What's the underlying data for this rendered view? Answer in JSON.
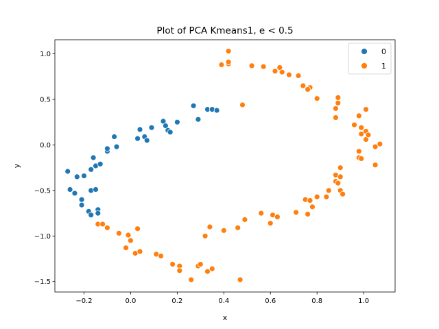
{
  "chart_data": {
    "type": "scatter",
    "title": "Plot of PCA Kmeans1, e < 0.5",
    "xlabel": "x",
    "ylabel": "y",
    "xlim": [
      -0.325,
      1.135
    ],
    "ylim": [
      -1.615,
      1.155
    ],
    "xticks": [
      -0.2,
      0.0,
      0.2,
      0.4,
      0.6,
      0.8,
      1.0
    ],
    "yticks": [
      -1.5,
      -1.0,
      -0.5,
      0.0,
      0.5,
      1.0
    ],
    "xtick_labels": [
      "−0.2",
      "0.0",
      "0.2",
      "0.4",
      "0.6",
      "0.8",
      "1.0"
    ],
    "ytick_labels": [
      "−1.5",
      "−1.0",
      "−0.5",
      "0.0",
      "0.5",
      "1.0"
    ],
    "grid": false,
    "legend": {
      "position": "top-right"
    },
    "series": [
      {
        "name": "0",
        "color": "#1f77b4",
        "points": [
          [
            -0.27,
            -0.29
          ],
          [
            -0.26,
            -0.49
          ],
          [
            -0.24,
            -0.53
          ],
          [
            -0.23,
            -0.35
          ],
          [
            -0.21,
            -0.6
          ],
          [
            -0.21,
            -0.66
          ],
          [
            -0.2,
            -0.34
          ],
          [
            -0.18,
            -0.73
          ],
          [
            -0.17,
            -0.5
          ],
          [
            -0.17,
            -0.77
          ],
          [
            -0.17,
            -0.27
          ],
          [
            -0.16,
            -0.14
          ],
          [
            -0.15,
            -0.49
          ],
          [
            -0.15,
            -0.23
          ],
          [
            -0.14,
            -0.71
          ],
          [
            -0.14,
            -0.75
          ],
          [
            -0.13,
            -0.21
          ],
          [
            -0.1,
            -0.07
          ],
          [
            -0.1,
            -0.04
          ],
          [
            -0.07,
            0.09
          ],
          [
            -0.06,
            -0.02
          ],
          [
            0.03,
            0.07
          ],
          [
            0.04,
            0.17
          ],
          [
            0.06,
            0.09
          ],
          [
            0.07,
            0.05
          ],
          [
            0.09,
            0.19
          ],
          [
            0.14,
            0.26
          ],
          [
            0.15,
            0.21
          ],
          [
            0.16,
            0.16
          ],
          [
            0.17,
            0.14
          ],
          [
            0.2,
            0.25
          ],
          [
            0.27,
            0.43
          ],
          [
            0.29,
            0.28
          ],
          [
            0.33,
            0.39
          ],
          [
            0.35,
            0.39
          ],
          [
            0.37,
            0.38
          ]
        ]
      },
      {
        "name": "1",
        "color": "#ff7f0e",
        "points": [
          [
            -0.14,
            -0.87
          ],
          [
            -0.12,
            -0.87
          ],
          [
            -0.1,
            -0.91
          ],
          [
            -0.05,
            -0.97
          ],
          [
            -0.02,
            -1.13
          ],
          [
            -0.01,
            -0.99
          ],
          [
            -0.0,
            -1.05
          ],
          [
            0.02,
            -1.19
          ],
          [
            0.04,
            -1.17
          ],
          [
            0.03,
            -0.92
          ],
          [
            0.11,
            -1.2
          ],
          [
            0.13,
            -1.22
          ],
          [
            0.18,
            -1.31
          ],
          [
            0.21,
            -1.33
          ],
          [
            0.21,
            -1.38
          ],
          [
            0.26,
            -1.48
          ],
          [
            0.29,
            -1.33
          ],
          [
            0.3,
            -1.31
          ],
          [
            0.32,
            -1.0
          ],
          [
            0.33,
            -1.39
          ],
          [
            0.34,
            -0.9
          ],
          [
            0.35,
            -1.36
          ],
          [
            0.4,
            -0.94
          ],
          [
            0.46,
            -0.91
          ],
          [
            0.47,
            -1.48
          ],
          [
            0.49,
            -0.82
          ],
          [
            0.56,
            -0.75
          ],
          [
            0.6,
            -0.86
          ],
          [
            0.61,
            -0.77
          ],
          [
            0.63,
            -0.79
          ],
          [
            0.71,
            -0.74
          ],
          [
            0.75,
            -0.6
          ],
          [
            0.76,
            -0.76
          ],
          [
            0.77,
            -0.61
          ],
          [
            0.78,
            -0.68
          ],
          [
            0.8,
            -0.57
          ],
          [
            0.84,
            -0.57
          ],
          [
            0.85,
            -0.5
          ],
          [
            0.88,
            -0.4
          ],
          [
            0.88,
            -0.33
          ],
          [
            0.89,
            -0.42
          ],
          [
            0.9,
            -0.35
          ],
          [
            0.9,
            -0.25
          ],
          [
            0.9,
            -0.5
          ],
          [
            0.91,
            -0.54
          ],
          [
            0.96,
            0.22
          ],
          [
            0.98,
            -0.14
          ],
          [
            0.98,
            -0.07
          ],
          [
            0.99,
            -0.15
          ],
          [
            0.99,
            0.19
          ],
          [
            0.99,
            0.12
          ],
          [
            1.01,
            0.15
          ],
          [
            1.01,
            0.06
          ],
          [
            1.02,
            0.11
          ],
          [
            1.05,
            -0.02
          ],
          [
            1.05,
            -0.22
          ],
          [
            1.07,
            0.01
          ],
          [
            0.98,
            0.32
          ],
          [
            1.01,
            0.39
          ],
          [
            0.88,
            0.3
          ],
          [
            0.88,
            0.4
          ],
          [
            0.89,
            0.46
          ],
          [
            0.89,
            0.52
          ],
          [
            0.8,
            0.51
          ],
          [
            0.77,
            0.63
          ],
          [
            0.76,
            0.61
          ],
          [
            0.74,
            0.65
          ],
          [
            0.72,
            0.76
          ],
          [
            0.68,
            0.77
          ],
          [
            0.65,
            0.8
          ],
          [
            0.64,
            0.85
          ],
          [
            0.62,
            0.81
          ],
          [
            0.57,
            0.86
          ],
          [
            0.52,
            0.87
          ],
          [
            0.48,
            0.44
          ],
          [
            0.42,
            0.89
          ],
          [
            0.42,
            0.91
          ],
          [
            0.42,
            1.03
          ],
          [
            0.39,
            0.88
          ]
        ]
      }
    ]
  }
}
